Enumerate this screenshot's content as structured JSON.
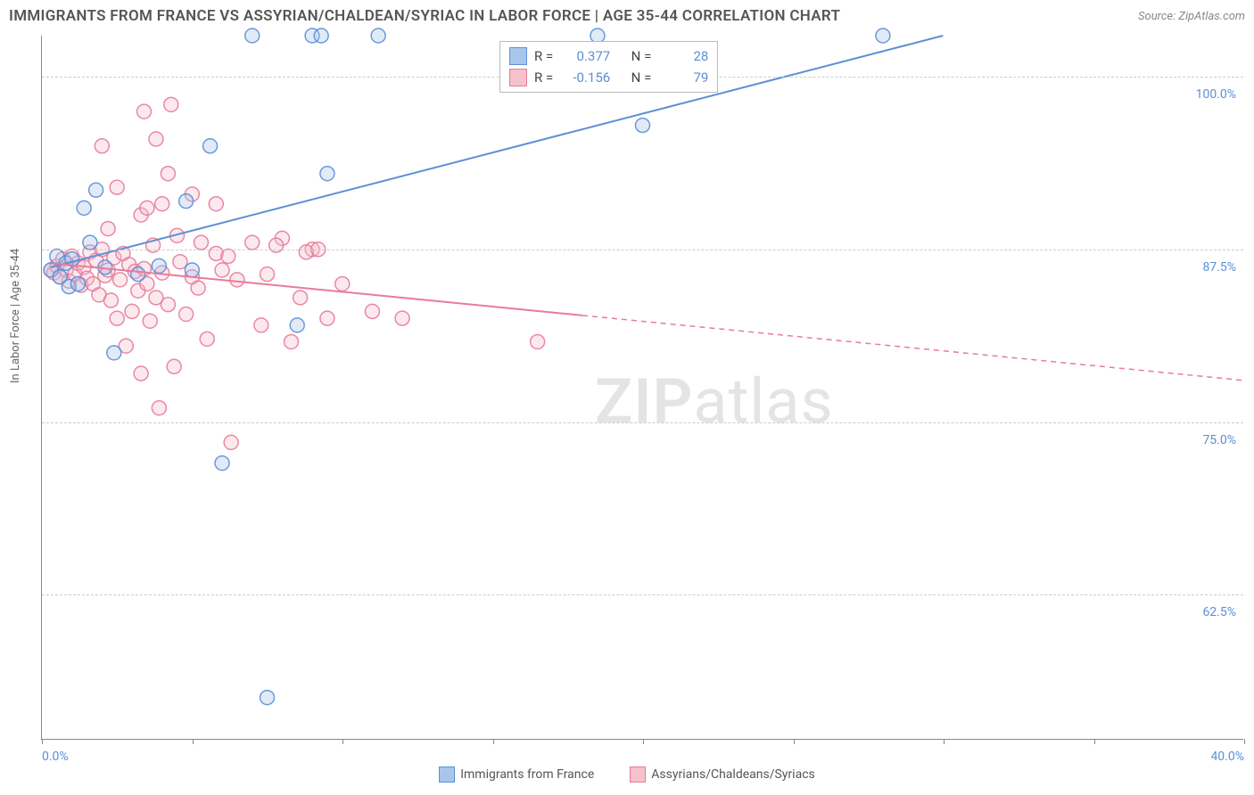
{
  "title": "IMMIGRANTS FROM FRANCE VS ASSYRIAN/CHALDEAN/SYRIAC IN LABOR FORCE | AGE 35-44 CORRELATION CHART",
  "source_label": "Source: ZipAtlas.com",
  "y_axis_label": "In Labor Force | Age 35-44",
  "watermark_a": "ZIP",
  "watermark_b": "atlas",
  "chart": {
    "type": "scatter-with-regression",
    "x_min": 0.0,
    "x_max": 40.0,
    "y_min": 52.0,
    "y_max": 103.0,
    "y_ticks": [
      62.5,
      75.0,
      87.5,
      100.0
    ],
    "y_tick_labels": [
      "62.5%",
      "75.0%",
      "87.5%",
      "100.0%"
    ],
    "x_ticks": [
      0,
      5,
      10,
      15,
      20,
      25,
      30,
      35,
      40
    ],
    "x_min_label": "0.0%",
    "x_max_label": "40.0%",
    "marker_radius": 8,
    "marker_fill_opacity": 0.35,
    "marker_stroke_opacity": 0.9,
    "grid_color": "#cccccc",
    "axis_color": "#888888",
    "background_color": "#ffffff",
    "series": [
      {
        "key": "france",
        "label": "Immigrants from France",
        "color_fill": "#a9c6ea",
        "color_stroke": "#5b8fd6",
        "r": "0.377",
        "n": "28",
        "regression": {
          "x1": 0.3,
          "y1": 86.2,
          "x2": 30.0,
          "y2": 103.0,
          "solid_until_x": 30.0
        },
        "points": [
          [
            0.3,
            86.0
          ],
          [
            0.5,
            87.0
          ],
          [
            0.6,
            85.5
          ],
          [
            0.8,
            86.5
          ],
          [
            0.9,
            84.8
          ],
          [
            1.0,
            86.8
          ],
          [
            1.2,
            85.0
          ],
          [
            1.4,
            90.5
          ],
          [
            1.6,
            88.0
          ],
          [
            1.8,
            91.8
          ],
          [
            2.1,
            86.2
          ],
          [
            2.4,
            80.0
          ],
          [
            3.2,
            85.7
          ],
          [
            3.9,
            86.3
          ],
          [
            4.8,
            91.0
          ],
          [
            5.0,
            86.0
          ],
          [
            5.6,
            95.0
          ],
          [
            6.0,
            72.0
          ],
          [
            7.0,
            103.0
          ],
          [
            8.5,
            82.0
          ],
          [
            9.0,
            103.0
          ],
          [
            9.3,
            103.0
          ],
          [
            9.5,
            93.0
          ],
          [
            11.2,
            103.0
          ],
          [
            7.5,
            55.0
          ],
          [
            18.5,
            103.0
          ],
          [
            20.0,
            96.5
          ],
          [
            28.0,
            103.0
          ]
        ]
      },
      {
        "key": "assyrian",
        "label": "Assyrians/Chaldeans/Syriacs",
        "color_fill": "#f4c1cd",
        "color_stroke": "#e87b9a",
        "r": "-0.156",
        "n": "79",
        "regression": {
          "x1": 0.3,
          "y1": 86.5,
          "x2": 40.0,
          "y2": 78.0,
          "solid_until_x": 18.0
        },
        "points": [
          [
            0.3,
            86.0
          ],
          [
            0.4,
            85.8
          ],
          [
            0.5,
            86.3
          ],
          [
            0.6,
            85.5
          ],
          [
            0.7,
            86.8
          ],
          [
            0.8,
            86.0
          ],
          [
            0.9,
            85.2
          ],
          [
            1.0,
            87.0
          ],
          [
            1.1,
            85.7
          ],
          [
            1.2,
            86.5
          ],
          [
            1.3,
            84.9
          ],
          [
            1.4,
            86.2
          ],
          [
            1.5,
            85.4
          ],
          [
            1.6,
            87.3
          ],
          [
            1.7,
            85.0
          ],
          [
            1.8,
            86.7
          ],
          [
            1.9,
            84.2
          ],
          [
            2.0,
            87.5
          ],
          [
            2.1,
            85.6
          ],
          [
            2.2,
            86.0
          ],
          [
            2.3,
            83.8
          ],
          [
            2.4,
            86.9
          ],
          [
            2.5,
            82.5
          ],
          [
            2.6,
            85.3
          ],
          [
            2.7,
            87.2
          ],
          [
            2.8,
            80.5
          ],
          [
            2.9,
            86.4
          ],
          [
            3.0,
            83.0
          ],
          [
            3.1,
            85.9
          ],
          [
            3.2,
            84.5
          ],
          [
            3.3,
            78.5
          ],
          [
            3.4,
            86.1
          ],
          [
            3.5,
            85.0
          ],
          [
            3.6,
            82.3
          ],
          [
            3.7,
            87.8
          ],
          [
            3.8,
            84.0
          ],
          [
            3.9,
            76.0
          ],
          [
            4.0,
            85.8
          ],
          [
            4.2,
            83.5
          ],
          [
            4.4,
            79.0
          ],
          [
            4.6,
            86.6
          ],
          [
            4.8,
            82.8
          ],
          [
            5.0,
            85.5
          ],
          [
            5.2,
            84.7
          ],
          [
            5.5,
            81.0
          ],
          [
            5.8,
            90.8
          ],
          [
            6.0,
            86.0
          ],
          [
            6.3,
            73.5
          ],
          [
            6.5,
            85.3
          ],
          [
            7.0,
            88.0
          ],
          [
            7.3,
            82.0
          ],
          [
            7.5,
            85.7
          ],
          [
            8.0,
            88.3
          ],
          [
            8.3,
            80.8
          ],
          [
            8.6,
            84.0
          ],
          [
            9.0,
            87.5
          ],
          [
            9.5,
            82.5
          ],
          [
            10.0,
            85.0
          ],
          [
            11.0,
            83.0
          ],
          [
            12.0,
            82.5
          ],
          [
            2.0,
            95.0
          ],
          [
            2.2,
            89.0
          ],
          [
            2.5,
            92.0
          ],
          [
            3.3,
            90.0
          ],
          [
            3.4,
            97.5
          ],
          [
            3.5,
            90.5
          ],
          [
            3.8,
            95.5
          ],
          [
            4.0,
            90.8
          ],
          [
            4.2,
            93.0
          ],
          [
            4.3,
            98.0
          ],
          [
            4.5,
            88.5
          ],
          [
            5.0,
            91.5
          ],
          [
            5.3,
            88.0
          ],
          [
            5.8,
            87.2
          ],
          [
            6.2,
            87.0
          ],
          [
            7.8,
            87.8
          ],
          [
            8.8,
            87.3
          ],
          [
            16.5,
            80.8
          ],
          [
            9.2,
            87.5
          ]
        ]
      }
    ]
  },
  "legend_r_label": "R =",
  "legend_n_label": "N ="
}
